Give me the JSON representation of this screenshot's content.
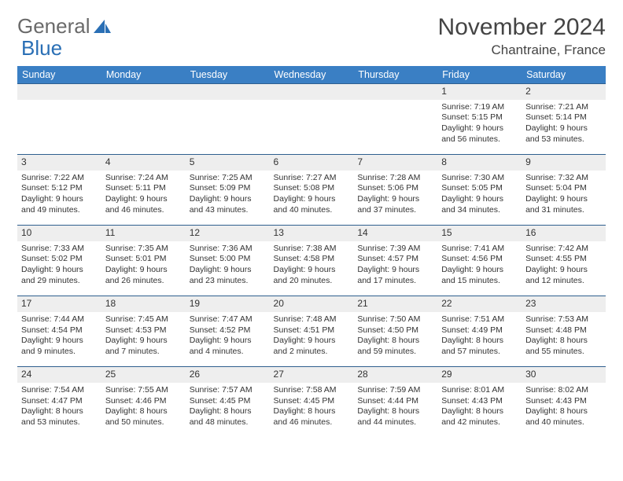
{
  "brand": {
    "part1": "General",
    "part2": "Blue"
  },
  "title": "November 2024",
  "location": "Chantraine, France",
  "colors": {
    "header_bg": "#3a7fc4",
    "header_text": "#ffffff",
    "daynum_bg": "#eeeeee",
    "border": "#2f5f8f",
    "body_text": "#333333",
    "brand_gray": "#6a6a6a",
    "brand_blue": "#2a6fb5"
  },
  "weekdays": [
    "Sunday",
    "Monday",
    "Tuesday",
    "Wednesday",
    "Thursday",
    "Friday",
    "Saturday"
  ],
  "weeks": [
    {
      "nums": [
        "",
        "",
        "",
        "",
        "",
        "1",
        "2"
      ],
      "cells": [
        null,
        null,
        null,
        null,
        null,
        {
          "sunrise": "Sunrise: 7:19 AM",
          "sunset": "Sunset: 5:15 PM",
          "daylight": "Daylight: 9 hours and 56 minutes."
        },
        {
          "sunrise": "Sunrise: 7:21 AM",
          "sunset": "Sunset: 5:14 PM",
          "daylight": "Daylight: 9 hours and 53 minutes."
        }
      ]
    },
    {
      "nums": [
        "3",
        "4",
        "5",
        "6",
        "7",
        "8",
        "9"
      ],
      "cells": [
        {
          "sunrise": "Sunrise: 7:22 AM",
          "sunset": "Sunset: 5:12 PM",
          "daylight": "Daylight: 9 hours and 49 minutes."
        },
        {
          "sunrise": "Sunrise: 7:24 AM",
          "sunset": "Sunset: 5:11 PM",
          "daylight": "Daylight: 9 hours and 46 minutes."
        },
        {
          "sunrise": "Sunrise: 7:25 AM",
          "sunset": "Sunset: 5:09 PM",
          "daylight": "Daylight: 9 hours and 43 minutes."
        },
        {
          "sunrise": "Sunrise: 7:27 AM",
          "sunset": "Sunset: 5:08 PM",
          "daylight": "Daylight: 9 hours and 40 minutes."
        },
        {
          "sunrise": "Sunrise: 7:28 AM",
          "sunset": "Sunset: 5:06 PM",
          "daylight": "Daylight: 9 hours and 37 minutes."
        },
        {
          "sunrise": "Sunrise: 7:30 AM",
          "sunset": "Sunset: 5:05 PM",
          "daylight": "Daylight: 9 hours and 34 minutes."
        },
        {
          "sunrise": "Sunrise: 7:32 AM",
          "sunset": "Sunset: 5:04 PM",
          "daylight": "Daylight: 9 hours and 31 minutes."
        }
      ]
    },
    {
      "nums": [
        "10",
        "11",
        "12",
        "13",
        "14",
        "15",
        "16"
      ],
      "cells": [
        {
          "sunrise": "Sunrise: 7:33 AM",
          "sunset": "Sunset: 5:02 PM",
          "daylight": "Daylight: 9 hours and 29 minutes."
        },
        {
          "sunrise": "Sunrise: 7:35 AM",
          "sunset": "Sunset: 5:01 PM",
          "daylight": "Daylight: 9 hours and 26 minutes."
        },
        {
          "sunrise": "Sunrise: 7:36 AM",
          "sunset": "Sunset: 5:00 PM",
          "daylight": "Daylight: 9 hours and 23 minutes."
        },
        {
          "sunrise": "Sunrise: 7:38 AM",
          "sunset": "Sunset: 4:58 PM",
          "daylight": "Daylight: 9 hours and 20 minutes."
        },
        {
          "sunrise": "Sunrise: 7:39 AM",
          "sunset": "Sunset: 4:57 PM",
          "daylight": "Daylight: 9 hours and 17 minutes."
        },
        {
          "sunrise": "Sunrise: 7:41 AM",
          "sunset": "Sunset: 4:56 PM",
          "daylight": "Daylight: 9 hours and 15 minutes."
        },
        {
          "sunrise": "Sunrise: 7:42 AM",
          "sunset": "Sunset: 4:55 PM",
          "daylight": "Daylight: 9 hours and 12 minutes."
        }
      ]
    },
    {
      "nums": [
        "17",
        "18",
        "19",
        "20",
        "21",
        "22",
        "23"
      ],
      "cells": [
        {
          "sunrise": "Sunrise: 7:44 AM",
          "sunset": "Sunset: 4:54 PM",
          "daylight": "Daylight: 9 hours and 9 minutes."
        },
        {
          "sunrise": "Sunrise: 7:45 AM",
          "sunset": "Sunset: 4:53 PM",
          "daylight": "Daylight: 9 hours and 7 minutes."
        },
        {
          "sunrise": "Sunrise: 7:47 AM",
          "sunset": "Sunset: 4:52 PM",
          "daylight": "Daylight: 9 hours and 4 minutes."
        },
        {
          "sunrise": "Sunrise: 7:48 AM",
          "sunset": "Sunset: 4:51 PM",
          "daylight": "Daylight: 9 hours and 2 minutes."
        },
        {
          "sunrise": "Sunrise: 7:50 AM",
          "sunset": "Sunset: 4:50 PM",
          "daylight": "Daylight: 8 hours and 59 minutes."
        },
        {
          "sunrise": "Sunrise: 7:51 AM",
          "sunset": "Sunset: 4:49 PM",
          "daylight": "Daylight: 8 hours and 57 minutes."
        },
        {
          "sunrise": "Sunrise: 7:53 AM",
          "sunset": "Sunset: 4:48 PM",
          "daylight": "Daylight: 8 hours and 55 minutes."
        }
      ]
    },
    {
      "nums": [
        "24",
        "25",
        "26",
        "27",
        "28",
        "29",
        "30"
      ],
      "cells": [
        {
          "sunrise": "Sunrise: 7:54 AM",
          "sunset": "Sunset: 4:47 PM",
          "daylight": "Daylight: 8 hours and 53 minutes."
        },
        {
          "sunrise": "Sunrise: 7:55 AM",
          "sunset": "Sunset: 4:46 PM",
          "daylight": "Daylight: 8 hours and 50 minutes."
        },
        {
          "sunrise": "Sunrise: 7:57 AM",
          "sunset": "Sunset: 4:45 PM",
          "daylight": "Daylight: 8 hours and 48 minutes."
        },
        {
          "sunrise": "Sunrise: 7:58 AM",
          "sunset": "Sunset: 4:45 PM",
          "daylight": "Daylight: 8 hours and 46 minutes."
        },
        {
          "sunrise": "Sunrise: 7:59 AM",
          "sunset": "Sunset: 4:44 PM",
          "daylight": "Daylight: 8 hours and 44 minutes."
        },
        {
          "sunrise": "Sunrise: 8:01 AM",
          "sunset": "Sunset: 4:43 PM",
          "daylight": "Daylight: 8 hours and 42 minutes."
        },
        {
          "sunrise": "Sunrise: 8:02 AM",
          "sunset": "Sunset: 4:43 PM",
          "daylight": "Daylight: 8 hours and 40 minutes."
        }
      ]
    }
  ]
}
